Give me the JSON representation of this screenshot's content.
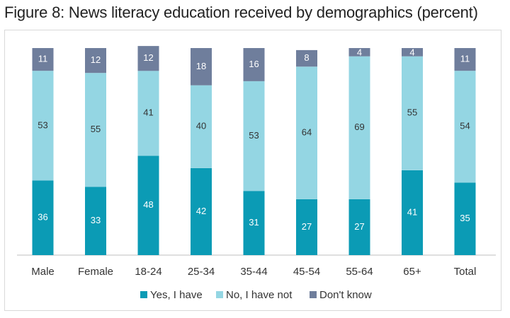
{
  "title": "Figure 8: News literacy education received by demographics (percent)",
  "chart_data": {
    "type": "bar",
    "stacked": true,
    "categories": [
      "Male",
      "Female",
      "18-24",
      "25-34",
      "35-44",
      "45-54",
      "55-64",
      "65+",
      "Total"
    ],
    "series": [
      {
        "name": "Yes, I have",
        "color": "#0b9bb5",
        "label_color": "#ffffff",
        "values": [
          36,
          33,
          48,
          42,
          31,
          27,
          27,
          41,
          35
        ]
      },
      {
        "name": "No, I have not",
        "color": "#94d6e3",
        "label_color": "#333333",
        "values": [
          53,
          55,
          41,
          40,
          53,
          64,
          69,
          55,
          54
        ]
      },
      {
        "name": "Don't know",
        "color": "#6f7e9c",
        "label_color": "#ffffff",
        "values": [
          11,
          12,
          12,
          18,
          16,
          8,
          4,
          4,
          11
        ]
      }
    ],
    "ylim": [
      0,
      100
    ],
    "grid": false,
    "legend_position": "bottom"
  }
}
